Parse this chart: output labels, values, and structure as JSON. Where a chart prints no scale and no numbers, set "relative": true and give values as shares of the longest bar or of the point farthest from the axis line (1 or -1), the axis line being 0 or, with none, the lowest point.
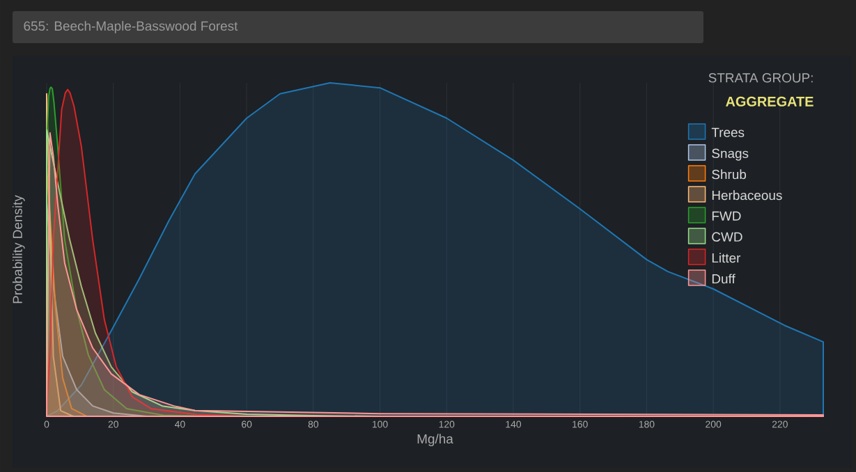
{
  "chart_data": {
    "type": "area",
    "title": "655: Beech-Maple-Basswood Forest",
    "legend_title": "STRATA GROUP:",
    "annotations": [
      "AGGREGATE"
    ],
    "xlabel": "Mg/ha",
    "ylabel": "Probability Density",
    "relative": true,
    "xlim": [
      0,
      233
    ],
    "xticks": [
      0,
      20,
      40,
      60,
      80,
      100,
      120,
      140,
      160,
      180,
      200,
      220
    ],
    "grid": "x",
    "legend": "top right",
    "series": [
      {
        "name": "Trees",
        "color": "#1f77b4",
        "x": [
          0,
          3.3,
          10.4,
          18.8,
          27.8,
          36.7,
          44.5,
          60,
          70,
          85,
          100,
          120,
          140,
          160,
          180,
          186.4,
          200,
          221.3,
          233
        ],
        "values": [
          0,
          0.017,
          0.094,
          0.246,
          0.413,
          0.587,
          0.727,
          0.894,
          0.967,
          1,
          0.985,
          0.894,
          0.768,
          0.622,
          0.47,
          0.434,
          0.382,
          0.273,
          0.223
        ]
      },
      {
        "name": "Snags",
        "color": "#aec7e8",
        "x": [
          0,
          2,
          4.8,
          9,
          13.8,
          20,
          30,
          233
        ],
        "values": [
          0.643,
          0.39,
          0.18,
          0.08,
          0.031,
          0.01,
          0,
          0
        ]
      },
      {
        "name": "Shrub",
        "color": "#ff7f0e",
        "x": [
          0,
          1,
          2,
          2.7,
          4.8,
          7.5,
          12,
          233
        ],
        "values": [
          0.75,
          0.6,
          0.43,
          0.32,
          0.115,
          0.023,
          0,
          0
        ]
      },
      {
        "name": "Herbaceous",
        "color": "#ffbb78",
        "x": [
          0,
          1.3,
          2,
          4.2,
          8,
          233
        ],
        "values": [
          0.967,
          0.46,
          0.18,
          0.017,
          0,
          0
        ]
      },
      {
        "name": "FWD",
        "color": "#2ca02c",
        "x": [
          0,
          0.6,
          1,
          1.3,
          1.7,
          2.2,
          3.3,
          5.4,
          9,
          12.5,
          17.3,
          24,
          35,
          50,
          233
        ],
        "values": [
          0.816,
          0.96,
          0.983,
          0.987,
          0.982,
          0.94,
          0.81,
          0.53,
          0.32,
          0.184,
          0.08,
          0.023,
          0.003,
          0,
          0
        ]
      },
      {
        "name": "CWD",
        "color": "#98df8a",
        "x": [
          0,
          3.3,
          6.9,
          10.4,
          14.6,
          19.4,
          25.7,
          34.7,
          44.5,
          60,
          80,
          100,
          233
        ],
        "values": [
          0.858,
          0.7,
          0.53,
          0.39,
          0.25,
          0.148,
          0.073,
          0.031,
          0.017,
          0.006,
          0.002,
          0,
          0
        ]
      },
      {
        "name": "Litter",
        "color": "#d62728",
        "x": [
          0,
          1,
          2,
          4.5,
          5.6,
          6.3,
          7,
          8.2,
          10.4,
          13.8,
          17.3,
          20.9,
          25.7,
          31.3,
          45,
          60,
          233
        ],
        "values": [
          0.02,
          0.2,
          0.53,
          0.92,
          0.97,
          0.98,
          0.97,
          0.93,
          0.81,
          0.53,
          0.29,
          0.148,
          0.058,
          0.023,
          0.005,
          0,
          0
        ]
      },
      {
        "name": "Duff",
        "color": "#ff9896",
        "x": [
          0,
          0.5,
          1,
          2,
          3.3,
          5.4,
          9,
          13.8,
          19.4,
          27.8,
          38.2,
          44.5,
          100,
          233
        ],
        "values": [
          0,
          0.5,
          0.85,
          0.78,
          0.637,
          0.46,
          0.32,
          0.205,
          0.127,
          0.065,
          0.031,
          0.017,
          0.008,
          0.004
        ]
      }
    ]
  }
}
